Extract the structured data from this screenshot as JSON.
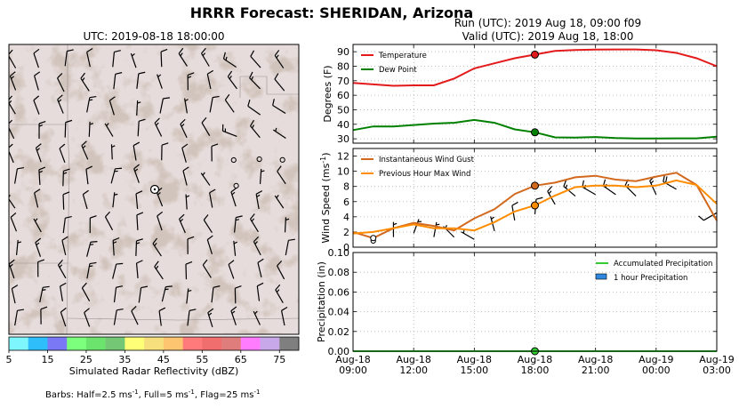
{
  "figure": {
    "title": "HRRR Forecast: SHERIDAN, Arizona",
    "map_title": "UTC: 2019-08-18 18:00:00",
    "run_line": "Run (UTC): 2019 Aug 18, 09:00 f09",
    "valid_line": "Valid (UTC): 2019 Aug 18, 18:00",
    "barb_note": "Barbs: Half=2.5 ms",
    "barb_note_sup1": "-1",
    "barb_note_full": ", Full=5 ms",
    "barb_note_sup2": "-1",
    "barb_note_flag": ", Flag=25 ms",
    "barb_note_sup3": "-1"
  },
  "colorbar": {
    "label": "Simulated Radar Reflectivity (dBZ)",
    "ticks": [
      "5",
      "15",
      "25",
      "35",
      "45",
      "55",
      "65",
      "75"
    ],
    "colors": [
      "#7ef6fe",
      "#2ebef9",
      "#7b78f6",
      "#7cff7c",
      "#6ce36c",
      "#74c774",
      "#ffff77",
      "#f6df7c",
      "#fdc56f",
      "#ff7a7a",
      "#f06e6e",
      "#df7c7c",
      "#ff7cff",
      "#c8a8e8",
      "#7f7f7f"
    ]
  },
  "chart_data": [
    {
      "type": "line",
      "panel": "temperature",
      "ylabel": "Degrees (F)",
      "ylim": [
        27,
        95
      ],
      "yticks": [
        30,
        40,
        50,
        60,
        70,
        80,
        90
      ],
      "x_hours": [
        9,
        10,
        11,
        12,
        13,
        14,
        15,
        16,
        17,
        18,
        19,
        20,
        21,
        22,
        23,
        24,
        25,
        26,
        27
      ],
      "series": [
        {
          "name": "Temperature",
          "color": "#e31a1c",
          "values": [
            68.5,
            67.5,
            66.5,
            66.8,
            66.8,
            71.5,
            78.5,
            82,
            85.5,
            88,
            90.5,
            91.2,
            91.5,
            91.6,
            91.6,
            91,
            89.2,
            85.5,
            80
          ]
        },
        {
          "name": "Dew Point",
          "color": "#008000",
          "values": [
            36,
            38.5,
            38.5,
            39.5,
            40.5,
            41,
            43,
            41,
            36.5,
            34.5,
            31,
            30.8,
            31.2,
            30.5,
            30.2,
            30.2,
            30.3,
            30.3,
            31.5
          ]
        }
      ],
      "markers": [
        {
          "hour": 18,
          "series": 0
        },
        {
          "hour": 18,
          "series": 1
        }
      ],
      "legend": "top-left",
      "grid": true
    },
    {
      "type": "line",
      "panel": "wind",
      "ylabel": "Wind Speed (ms",
      "ylabel_sup": "-1",
      "ylabel_close": ")",
      "ylim": [
        0,
        13
      ],
      "yticks": [
        0,
        2,
        4,
        6,
        8,
        10,
        12
      ],
      "x_hours": [
        9,
        10,
        11,
        12,
        13,
        14,
        15,
        16,
        17,
        18,
        19,
        20,
        21,
        22,
        23,
        24,
        25,
        26,
        27
      ],
      "series": [
        {
          "name": "Instantaneous Wind Gust",
          "color": "#d2691e",
          "values": [
            2,
            1.2,
            2.5,
            3.2,
            2.8,
            2.2,
            3.8,
            5,
            7,
            8.1,
            8.5,
            9.2,
            9.4,
            8.9,
            8.7,
            9.3,
            9.8,
            8.2,
            3.5
          ]
        },
        {
          "name": "Previous Hour Max Wind",
          "color": "#ff8c00",
          "values": [
            1.8,
            2,
            2.5,
            3,
            2.5,
            2.5,
            2.2,
            3.3,
            4.7,
            5.5,
            6.8,
            7.9,
            8.1,
            8.1,
            7.9,
            8.1,
            8.8,
            8.2,
            5.7
          ]
        }
      ],
      "barbs": [
        {
          "hour": 10,
          "speed": 1.2,
          "dir": 0
        },
        {
          "hour": 11,
          "speed": 2.5,
          "dir": 0
        },
        {
          "hour": 12,
          "speed": 3,
          "dir": 20
        },
        {
          "hour": 13,
          "speed": 2.5,
          "dir": 10
        },
        {
          "hour": 14,
          "speed": 2.2,
          "dir": 315
        },
        {
          "hour": 15,
          "speed": 2.5,
          "dir": 300
        },
        {
          "hour": 16,
          "speed": 3.3,
          "dir": 345
        },
        {
          "hour": 17,
          "speed": 4.7,
          "dir": 350
        },
        {
          "hour": 18,
          "speed": 5.5,
          "dir": 5
        },
        {
          "hour": 19,
          "speed": 6.8,
          "dir": 330
        },
        {
          "hour": 20,
          "speed": 7.9,
          "dir": 310
        },
        {
          "hour": 21,
          "speed": 8.1,
          "dir": 300
        },
        {
          "hour": 22,
          "speed": 8.1,
          "dir": 305
        },
        {
          "hour": 23,
          "speed": 7.9,
          "dir": 315
        },
        {
          "hour": 24,
          "speed": 8.1,
          "dir": 335
        },
        {
          "hour": 25,
          "speed": 8.8,
          "dir": 300
        },
        {
          "hour": 27,
          "speed": 5.7,
          "dir": 240
        }
      ],
      "markers": [
        {
          "hour": 18,
          "series": 0
        },
        {
          "hour": 18,
          "series": 1
        },
        {
          "hour": 10,
          "series": "calm"
        }
      ],
      "legend": "top-left",
      "grid": true
    },
    {
      "type": "bar",
      "panel": "precipitation",
      "ylabel": "Precipitation (in)",
      "ylim": [
        0,
        0.1
      ],
      "yticks": [
        "0.00",
        "0.02",
        "0.04",
        "0.06",
        "0.08",
        "0.10"
      ],
      "series": [
        {
          "name": "Accumulated Precipitation",
          "color": "#32cd32",
          "values": [
            0,
            0,
            0,
            0,
            0,
            0,
            0,
            0,
            0,
            0,
            0,
            0,
            0,
            0,
            0,
            0,
            0,
            0,
            0
          ]
        },
        {
          "name": "1 hour Precipitation",
          "color": "#2e86de",
          "values": [
            0,
            0,
            0,
            0,
            0,
            0,
            0,
            0,
            0,
            0,
            0,
            0,
            0,
            0,
            0,
            0,
            0,
            0,
            0
          ]
        }
      ],
      "legend": "top-right",
      "grid": true,
      "xticks": [
        {
          "hour": 9,
          "line1": "Aug-18",
          "line2": "09:00"
        },
        {
          "hour": 12,
          "line1": "Aug-18",
          "line2": "12:00"
        },
        {
          "hour": 15,
          "line1": "Aug-18",
          "line2": "15:00"
        },
        {
          "hour": 18,
          "line1": "Aug-18",
          "line2": "18:00"
        },
        {
          "hour": 21,
          "line1": "Aug-18",
          "line2": "21:00"
        },
        {
          "hour": 24,
          "line1": "Aug-19",
          "line2": "00:00"
        },
        {
          "hour": 27,
          "line1": "Aug-19",
          "line2": "03:00"
        }
      ]
    }
  ]
}
